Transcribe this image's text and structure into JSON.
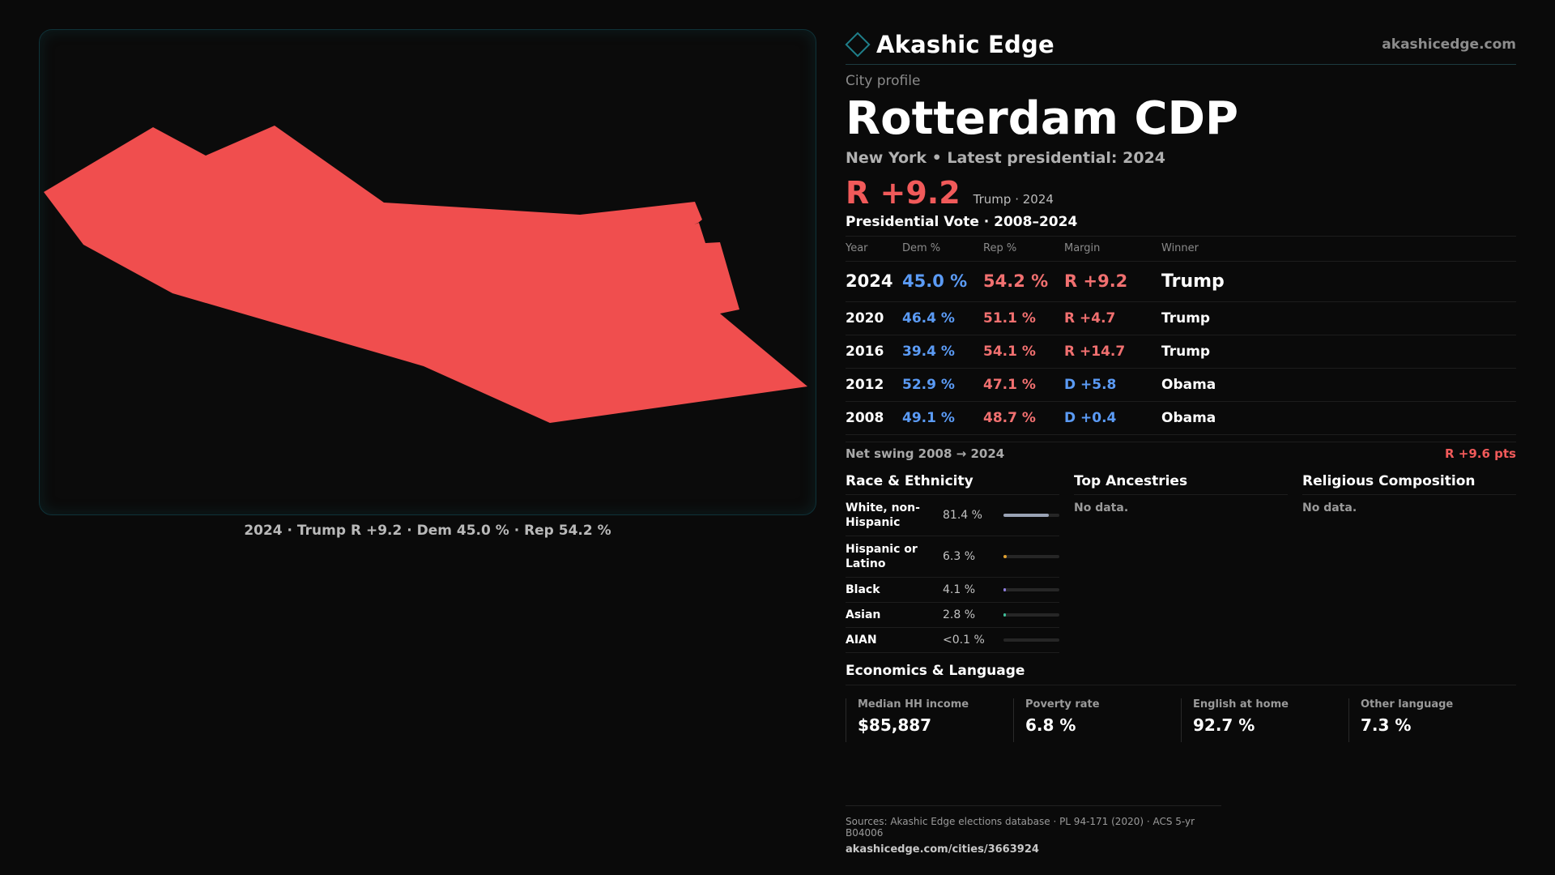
{
  "map": {
    "caption": "2024 · Trump R +9.2 · Dem 45.0 % · Rep 54.2 %",
    "fill_color": "#f04e4e"
  },
  "brand": {
    "name": "Akashic Edge",
    "site": "akashicedge.com",
    "icon": "diamond-icon"
  },
  "profile": {
    "eyebrow": "City profile",
    "title": "Rotterdam CDP",
    "subline": "New York  • Latest presidential: 2024",
    "margin": "R +9.2",
    "margin_note": "Trump · 2024"
  },
  "votes": {
    "title": "Presidential Vote · 2008–2024",
    "headers": [
      "Year",
      "Dem %",
      "Rep %",
      "Margin",
      "Winner"
    ],
    "rows": [
      {
        "year": "2024",
        "dem": "45.0 %",
        "rep": "54.2 %",
        "margin": "R +9.2",
        "party": "R",
        "winner": "Trump"
      },
      {
        "year": "2020",
        "dem": "46.4 %",
        "rep": "51.1 %",
        "margin": "R +4.7",
        "party": "R",
        "winner": "Trump"
      },
      {
        "year": "2016",
        "dem": "39.4 %",
        "rep": "54.1 %",
        "margin": "R +14.7",
        "party": "R",
        "winner": "Trump"
      },
      {
        "year": "2012",
        "dem": "52.9 %",
        "rep": "47.1 %",
        "margin": "D +5.8",
        "party": "D",
        "winner": "Obama"
      },
      {
        "year": "2008",
        "dem": "49.1 %",
        "rep": "48.7 %",
        "margin": "D +0.4",
        "party": "D",
        "winner": "Obama"
      }
    ],
    "swing_label": "Net swing 2008 → 2024",
    "swing_value": "R +9.6 pts"
  },
  "race": {
    "title": "Race & Ethnicity",
    "rows": [
      {
        "name": "White, non-Hispanic",
        "value": "81.4 %",
        "share": 0.814,
        "color": "#9aa3b5"
      },
      {
        "name": "Hispanic or Latino",
        "value": "6.3 %",
        "share": 0.063,
        "color": "#e0a030"
      },
      {
        "name": "Black",
        "value": "4.1 %",
        "share": 0.041,
        "color": "#8f7de0"
      },
      {
        "name": "Asian",
        "value": "2.8 %",
        "share": 0.028,
        "color": "#3fbf9a"
      },
      {
        "name": "AIAN",
        "value": "<0.1 %",
        "share": 0.0,
        "color": "#9a9a9a"
      }
    ]
  },
  "ancestries": {
    "title": "Top Ancestries",
    "empty": "No data."
  },
  "religion": {
    "title": "Religious Composition",
    "empty": "No data."
  },
  "economics": {
    "title": "Economics & Language",
    "cells": [
      {
        "label": "Median HH income",
        "value": "$85,887"
      },
      {
        "label": "Poverty rate",
        "value": "6.8 %"
      },
      {
        "label": "English at home",
        "value": "92.7 %"
      },
      {
        "label": "Other language",
        "value": "7.3 %"
      }
    ]
  },
  "sources": {
    "line": "Sources: Akashic Edge elections database · PL 94-171 (2020) · ACS 5-yr B04006",
    "url": "akashicedge.com/cities/3663924"
  }
}
